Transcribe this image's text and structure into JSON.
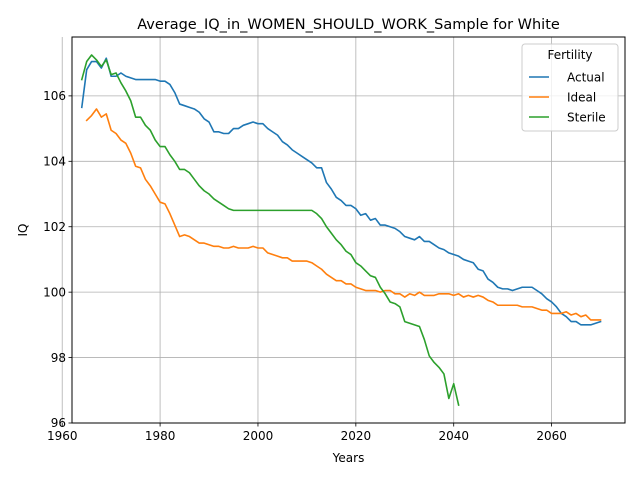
{
  "chart_data": {
    "type": "line",
    "title": "Average_IQ_in_WOMEN_SHOULD_WORK_Sample for White",
    "xlabel": "Years",
    "ylabel": "IQ",
    "xlim": [
      1962,
      2075
    ],
    "ylim": [
      96,
      107.8
    ],
    "x_ticks": [
      1960,
      1980,
      2000,
      2020,
      2040,
      2060
    ],
    "x_tick_labels": [
      "1960",
      "1980",
      "2000",
      "2020",
      "2040",
      "2060"
    ],
    "y_ticks": [
      96,
      98,
      100,
      102,
      104,
      106
    ],
    "y_tick_labels": [
      "96",
      "98",
      "100",
      "102",
      "104",
      "106"
    ],
    "grid": true,
    "legend": {
      "title": "Fertility",
      "position": "top-right"
    },
    "series": [
      {
        "name": "Actual",
        "color": "#1f77b4",
        "points": [
          [
            1964,
            105.65
          ],
          [
            1965,
            106.8
          ],
          [
            1966,
            107.05
          ],
          [
            1967,
            107.05
          ],
          [
            1968,
            106.85
          ],
          [
            1969,
            107.15
          ],
          [
            1970,
            106.6
          ],
          [
            1971,
            106.6
          ],
          [
            1972,
            106.7
          ],
          [
            1973,
            106.6
          ],
          [
            1974,
            106.55
          ],
          [
            1975,
            106.5
          ],
          [
            1976,
            106.5
          ],
          [
            1977,
            106.5
          ],
          [
            1978,
            106.5
          ],
          [
            1979,
            106.5
          ],
          [
            1980,
            106.45
          ],
          [
            1981,
            106.45
          ],
          [
            1982,
            106.35
          ],
          [
            1983,
            106.1
          ],
          [
            1984,
            105.75
          ],
          [
            1985,
            105.7
          ],
          [
            1986,
            105.65
          ],
          [
            1987,
            105.6
          ],
          [
            1988,
            105.5
          ],
          [
            1989,
            105.3
          ],
          [
            1990,
            105.2
          ],
          [
            1991,
            104.9
          ],
          [
            1992,
            104.9
          ],
          [
            1993,
            104.85
          ],
          [
            1994,
            104.85
          ],
          [
            1995,
            105.0
          ],
          [
            1996,
            105.0
          ],
          [
            1997,
            105.1
          ],
          [
            1998,
            105.15
          ],
          [
            1999,
            105.2
          ],
          [
            2000,
            105.15
          ],
          [
            2001,
            105.15
          ],
          [
            2002,
            105.0
          ],
          [
            2003,
            104.9
          ],
          [
            2004,
            104.8
          ],
          [
            2005,
            104.6
          ],
          [
            2006,
            104.5
          ],
          [
            2007,
            104.35
          ],
          [
            2008,
            104.25
          ],
          [
            2009,
            104.15
          ],
          [
            2010,
            104.05
          ],
          [
            2011,
            103.95
          ],
          [
            2012,
            103.8
          ],
          [
            2013,
            103.8
          ],
          [
            2014,
            103.35
          ],
          [
            2015,
            103.15
          ],
          [
            2016,
            102.9
          ],
          [
            2017,
            102.8
          ],
          [
            2018,
            102.65
          ],
          [
            2019,
            102.65
          ],
          [
            2020,
            102.55
          ],
          [
            2021,
            102.35
          ],
          [
            2022,
            102.4
          ],
          [
            2023,
            102.2
          ],
          [
            2024,
            102.25
          ],
          [
            2025,
            102.05
          ],
          [
            2026,
            102.05
          ],
          [
            2027,
            102.0
          ],
          [
            2028,
            101.95
          ],
          [
            2029,
            101.85
          ],
          [
            2030,
            101.7
          ],
          [
            2031,
            101.65
          ],
          [
            2032,
            101.6
          ],
          [
            2033,
            101.7
          ],
          [
            2034,
            101.55
          ],
          [
            2035,
            101.55
          ],
          [
            2036,
            101.45
          ],
          [
            2037,
            101.35
          ],
          [
            2038,
            101.3
          ],
          [
            2039,
            101.2
          ],
          [
            2040,
            101.15
          ],
          [
            2041,
            101.1
          ],
          [
            2042,
            101.0
          ],
          [
            2043,
            100.95
          ],
          [
            2044,
            100.9
          ],
          [
            2045,
            100.7
          ],
          [
            2046,
            100.65
          ],
          [
            2047,
            100.4
          ],
          [
            2048,
            100.3
          ],
          [
            2049,
            100.15
          ],
          [
            2050,
            100.1
          ],
          [
            2051,
            100.1
          ],
          [
            2052,
            100.05
          ],
          [
            2053,
            100.1
          ],
          [
            2054,
            100.15
          ],
          [
            2055,
            100.15
          ],
          [
            2056,
            100.15
          ],
          [
            2057,
            100.05
          ],
          [
            2058,
            99.95
          ],
          [
            2059,
            99.8
          ],
          [
            2060,
            99.7
          ],
          [
            2061,
            99.55
          ],
          [
            2062,
            99.35
          ],
          [
            2063,
            99.25
          ],
          [
            2064,
            99.1
          ],
          [
            2065,
            99.1
          ],
          [
            2066,
            99.0
          ],
          [
            2067,
            99.0
          ],
          [
            2068,
            99.0
          ],
          [
            2069,
            99.05
          ],
          [
            2070,
            99.1
          ]
        ]
      },
      {
        "name": "Ideal",
        "color": "#ff7f0e",
        "points": [
          [
            1965,
            105.25
          ],
          [
            1966,
            105.4
          ],
          [
            1967,
            105.6
          ],
          [
            1968,
            105.35
          ],
          [
            1969,
            105.45
          ],
          [
            1970,
            104.95
          ],
          [
            1971,
            104.85
          ],
          [
            1972,
            104.65
          ],
          [
            1973,
            104.55
          ],
          [
            1974,
            104.25
          ],
          [
            1975,
            103.85
          ],
          [
            1976,
            103.8
          ],
          [
            1977,
            103.45
          ],
          [
            1978,
            103.25
          ],
          [
            1979,
            103.0
          ],
          [
            1980,
            102.75
          ],
          [
            1981,
            102.7
          ],
          [
            1982,
            102.4
          ],
          [
            1983,
            102.05
          ],
          [
            1984,
            101.7
          ],
          [
            1985,
            101.75
          ],
          [
            1986,
            101.7
          ],
          [
            1987,
            101.6
          ],
          [
            1988,
            101.5
          ],
          [
            1989,
            101.5
          ],
          [
            1990,
            101.45
          ],
          [
            1991,
            101.4
          ],
          [
            1992,
            101.4
          ],
          [
            1993,
            101.35
          ],
          [
            1994,
            101.35
          ],
          [
            1995,
            101.4
          ],
          [
            1996,
            101.35
          ],
          [
            1997,
            101.35
          ],
          [
            1998,
            101.35
          ],
          [
            1999,
            101.4
          ],
          [
            2000,
            101.35
          ],
          [
            2001,
            101.35
          ],
          [
            2002,
            101.2
          ],
          [
            2003,
            101.15
          ],
          [
            2004,
            101.1
          ],
          [
            2005,
            101.05
          ],
          [
            2006,
            101.05
          ],
          [
            2007,
            100.95
          ],
          [
            2008,
            100.95
          ],
          [
            2009,
            100.95
          ],
          [
            2010,
            100.95
          ],
          [
            2011,
            100.9
          ],
          [
            2012,
            100.8
          ],
          [
            2013,
            100.7
          ],
          [
            2014,
            100.55
          ],
          [
            2015,
            100.45
          ],
          [
            2016,
            100.35
          ],
          [
            2017,
            100.35
          ],
          [
            2018,
            100.25
          ],
          [
            2019,
            100.25
          ],
          [
            2020,
            100.15
          ],
          [
            2021,
            100.1
          ],
          [
            2022,
            100.05
          ],
          [
            2023,
            100.05
          ],
          [
            2024,
            100.05
          ],
          [
            2025,
            100.0
          ],
          [
            2026,
            100.05
          ],
          [
            2027,
            100.05
          ],
          [
            2028,
            99.95
          ],
          [
            2029,
            99.95
          ],
          [
            2030,
            99.85
          ],
          [
            2031,
            99.95
          ],
          [
            2032,
            99.9
          ],
          [
            2033,
            100.0
          ],
          [
            2034,
            99.9
          ],
          [
            2035,
            99.9
          ],
          [
            2036,
            99.9
          ],
          [
            2037,
            99.95
          ],
          [
            2038,
            99.95
          ],
          [
            2039,
            99.95
          ],
          [
            2040,
            99.9
          ],
          [
            2041,
            99.95
          ],
          [
            2042,
            99.85
          ],
          [
            2043,
            99.9
          ],
          [
            2044,
            99.85
          ],
          [
            2045,
            99.9
          ],
          [
            2046,
            99.85
          ],
          [
            2047,
            99.75
          ],
          [
            2048,
            99.7
          ],
          [
            2049,
            99.6
          ],
          [
            2050,
            99.6
          ],
          [
            2051,
            99.6
          ],
          [
            2052,
            99.6
          ],
          [
            2053,
            99.6
          ],
          [
            2054,
            99.55
          ],
          [
            2055,
            99.55
          ],
          [
            2056,
            99.55
          ],
          [
            2057,
            99.5
          ],
          [
            2058,
            99.45
          ],
          [
            2059,
            99.45
          ],
          [
            2060,
            99.35
          ],
          [
            2061,
            99.35
          ],
          [
            2062,
            99.35
          ],
          [
            2063,
            99.4
          ],
          [
            2064,
            99.3
          ],
          [
            2065,
            99.35
          ],
          [
            2066,
            99.25
          ],
          [
            2067,
            99.3
          ],
          [
            2068,
            99.15
          ],
          [
            2069,
            99.15
          ],
          [
            2070,
            99.15
          ]
        ]
      },
      {
        "name": "Sterile",
        "color": "#2ca02c",
        "points": [
          [
            1964,
            106.5
          ],
          [
            1965,
            107.05
          ],
          [
            1966,
            107.25
          ],
          [
            1967,
            107.1
          ],
          [
            1968,
            106.9
          ],
          [
            1969,
            107.1
          ],
          [
            1970,
            106.65
          ],
          [
            1971,
            106.7
          ],
          [
            1972,
            106.4
          ],
          [
            1973,
            106.15
          ],
          [
            1974,
            105.85
          ],
          [
            1975,
            105.35
          ],
          [
            1976,
            105.35
          ],
          [
            1977,
            105.1
          ],
          [
            1978,
            104.95
          ],
          [
            1979,
            104.65
          ],
          [
            1980,
            104.45
          ],
          [
            1981,
            104.45
          ],
          [
            1982,
            104.2
          ],
          [
            1983,
            104.0
          ],
          [
            1984,
            103.75
          ],
          [
            1985,
            103.75
          ],
          [
            1986,
            103.65
          ],
          [
            1987,
            103.45
          ],
          [
            1988,
            103.25
          ],
          [
            1989,
            103.1
          ],
          [
            1990,
            103.0
          ],
          [
            1991,
            102.85
          ],
          [
            1992,
            102.75
          ],
          [
            1993,
            102.65
          ],
          [
            1994,
            102.55
          ],
          [
            1995,
            102.5
          ],
          [
            1996,
            102.5
          ],
          [
            1997,
            102.5
          ],
          [
            1998,
            102.5
          ],
          [
            1999,
            102.5
          ],
          [
            2000,
            102.5
          ],
          [
            2001,
            102.5
          ],
          [
            2002,
            102.5
          ],
          [
            2003,
            102.5
          ],
          [
            2004,
            102.5
          ],
          [
            2005,
            102.5
          ],
          [
            2006,
            102.5
          ],
          [
            2007,
            102.5
          ],
          [
            2008,
            102.5
          ],
          [
            2009,
            102.5
          ],
          [
            2010,
            102.5
          ],
          [
            2011,
            102.5
          ],
          [
            2012,
            102.4
          ],
          [
            2013,
            102.25
          ],
          [
            2014,
            102.0
          ],
          [
            2015,
            101.8
          ],
          [
            2016,
            101.6
          ],
          [
            2017,
            101.45
          ],
          [
            2018,
            101.25
          ],
          [
            2019,
            101.15
          ],
          [
            2020,
            100.9
          ],
          [
            2021,
            100.8
          ],
          [
            2022,
            100.65
          ],
          [
            2023,
            100.5
          ],
          [
            2024,
            100.45
          ],
          [
            2025,
            100.15
          ],
          [
            2026,
            99.95
          ],
          [
            2027,
            99.7
          ],
          [
            2028,
            99.65
          ],
          [
            2029,
            99.55
          ],
          [
            2030,
            99.1
          ],
          [
            2031,
            99.05
          ],
          [
            2032,
            99.0
          ],
          [
            2033,
            98.95
          ],
          [
            2034,
            98.55
          ],
          [
            2035,
            98.05
          ],
          [
            2036,
            97.85
          ],
          [
            2037,
            97.7
          ],
          [
            2038,
            97.5
          ],
          [
            2039,
            96.75
          ],
          [
            2040,
            97.2
          ],
          [
            2041,
            96.55
          ]
        ]
      }
    ]
  }
}
